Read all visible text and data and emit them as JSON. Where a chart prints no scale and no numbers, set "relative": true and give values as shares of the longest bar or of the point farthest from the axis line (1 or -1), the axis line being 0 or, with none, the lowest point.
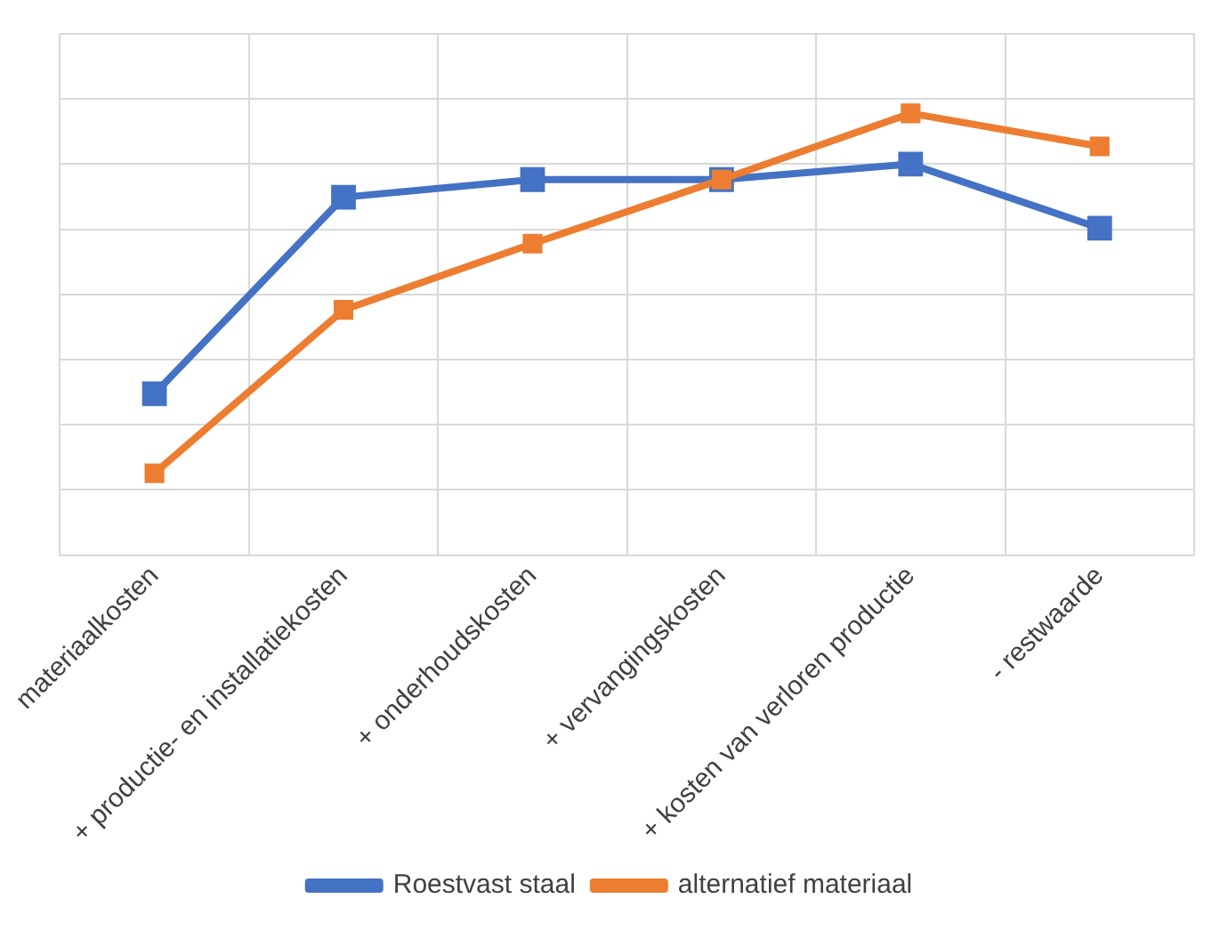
{
  "chart_data": {
    "type": "line",
    "relative": true,
    "categories": [
      "materiaalkosten",
      "+ productie- en installatiekosten",
      "+ onderhoudskosten",
      "+ vervangingskosten",
      "+ kosten van verloren productie",
      "- restwaarde"
    ],
    "series": [
      {
        "name": "Roestvast staal",
        "color": "#4472c4",
        "values": [
          0.365,
          0.81,
          0.85,
          0.85,
          0.885,
          0.74
        ]
      },
      {
        "name": "alternatief materiaal",
        "color": "#ed7d31",
        "values": [
          0.185,
          0.555,
          0.705,
          0.85,
          1,
          0.925
        ]
      }
    ],
    "grid": true,
    "legend": "bottom",
    "marker": "square",
    "line_style": "solid"
  }
}
